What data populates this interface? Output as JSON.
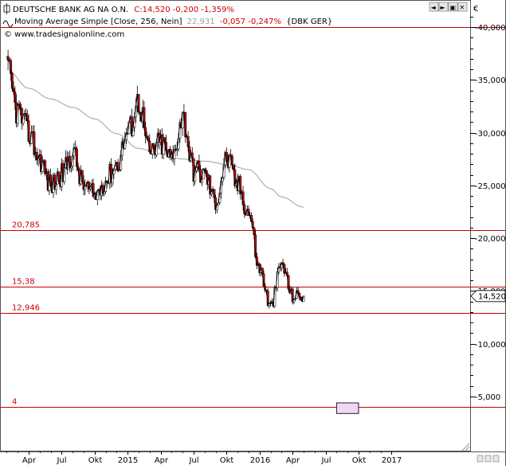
{
  "legend": {
    "symbol": "DEUTSCHE BANK AG NA O.N.",
    "close_text": "C:14,520 -0,200 -1,359%",
    "ma_name": "Moving Average Simple [Close, 256, Nein]",
    "ma_value": "22,931",
    "ma_change": "-0,057 -0,247%",
    "ma_ref": "{DBK GER}",
    "copyright": "© www.tradesignalonline.com"
  },
  "window_buttons": [
    "◄",
    "►",
    "▣",
    "✕"
  ],
  "corner_label": "€",
  "last_price_label": "14,520",
  "colors": {
    "price": "#000000",
    "candle_up": "#ffffff",
    "candle_down": "#cc0000",
    "ma": "#a0a0a0",
    "hline": "#cc0000",
    "hline_label": "#cc0000",
    "box_fill": "#f0d8f4",
    "box_stroke": "#222222"
  },
  "chart_data": {
    "type": "line",
    "title": "DEUTSCHE BANK AG NA O.N.",
    "xlabel": "",
    "ylabel": "",
    "ylim": [
      0,
      42000
    ],
    "grid": false,
    "x_ticks": [
      "Apr",
      "Jul",
      "Okt",
      "2015",
      "Apr",
      "Jul",
      "Okt",
      "2016",
      "Apr",
      "Jul",
      "Okt",
      "2017"
    ],
    "y_ticks": [
      {
        "value": 5000,
        "label": "5,000"
      },
      {
        "value": 10000,
        "label": "10,000"
      },
      {
        "value": 15000,
        "label": "15,000"
      },
      {
        "value": 20000,
        "label": "20,000"
      },
      {
        "value": 25000,
        "label": "25,000"
      },
      {
        "value": 30000,
        "label": "30,000"
      },
      {
        "value": 35000,
        "label": "35,000"
      },
      {
        "value": 40000,
        "label": "40,000"
      }
    ],
    "horizontal_lines": [
      {
        "value": 40000,
        "label": ""
      },
      {
        "value": 20785,
        "label": "20,785"
      },
      {
        "value": 15380,
        "label": "15,38"
      },
      {
        "value": 12946,
        "label": "12,946"
      },
      {
        "value": 4000,
        "label": "4"
      }
    ],
    "target_box": {
      "x_start": "2016-08",
      "x_end": "2016-10",
      "y_low": 3400,
      "y_high": 4400
    },
    "last_value": 14520,
    "series": [
      {
        "name": "DEUTSCHE BANK AG NA O.N.",
        "x": [
          "2014-02",
          "2014-03",
          "2014-04",
          "2014-05",
          "2014-06",
          "2014-07",
          "2014-08",
          "2014-09",
          "2014-10",
          "2014-11",
          "2014-12",
          "2015-01",
          "2015-02",
          "2015-03",
          "2015-04",
          "2015-05",
          "2015-06",
          "2015-07",
          "2015-08",
          "2015-09",
          "2015-10",
          "2015-11",
          "2015-12",
          "2016-01",
          "2016-02",
          "2016-03",
          "2016-04",
          "2016-05"
        ],
        "values": [
          36000,
          32000,
          30000,
          27500,
          25000,
          26000,
          28000,
          25000,
          24000,
          25500,
          27000,
          30000,
          33000,
          28000,
          29000,
          27500,
          31500,
          26500,
          26000,
          23500,
          27500,
          25000,
          22500,
          17000,
          13500,
          17500,
          14500,
          14520
        ]
      },
      {
        "name": "Moving Average Simple [Close, 256, Nein]",
        "x": [
          "2014-02",
          "2014-04",
          "2014-06",
          "2014-08",
          "2014-10",
          "2014-12",
          "2015-02",
          "2015-04",
          "2015-06",
          "2015-08",
          "2015-10",
          "2015-12",
          "2016-02",
          "2016-03",
          "2016-05"
        ],
        "values": [
          36000,
          34200,
          33200,
          32400,
          31300,
          29900,
          28500,
          28000,
          27500,
          27300,
          27000,
          26500,
          24700,
          23900,
          22931
        ]
      }
    ]
  }
}
